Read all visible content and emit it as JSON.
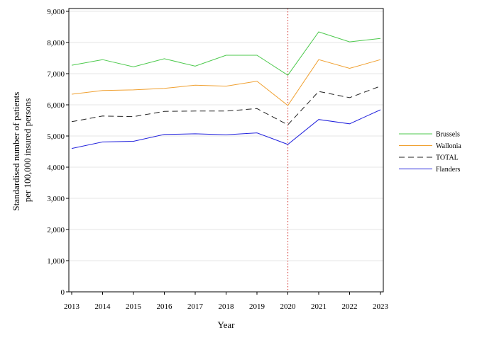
{
  "chart_data": {
    "type": "line",
    "x": [
      2013,
      2014,
      2015,
      2016,
      2017,
      2018,
      2019,
      2020,
      2021,
      2022,
      2023
    ],
    "x_tick_labels": [
      "2013",
      "2014",
      "2015",
      "2016",
      "2017",
      "2018",
      "2019",
      "2020",
      "2021",
      "2022",
      "2023"
    ],
    "xlabel": "Year",
    "ylabel": "Standardised number of patients per 100,000 insured persons",
    "ylabel_lines": [
      "Standardised number of patients",
      "per 100,000 insured persons"
    ],
    "ylim": [
      0,
      9000
    ],
    "y_ticks": [
      0,
      1000,
      2000,
      3000,
      4000,
      5000,
      6000,
      7000,
      8000,
      9000
    ],
    "y_tick_labels": [
      "0",
      "1,000",
      "2,000",
      "3,000",
      "4,000",
      "5,000",
      "6,000",
      "7,000",
      "8,000",
      "9,000"
    ],
    "grid": "horizontal",
    "legend_position": "right",
    "reference_line": {
      "x": 2020,
      "style": "dotted",
      "color": "#d9534f"
    },
    "series": [
      {
        "name": "Brussels",
        "color": "#4cc94c",
        "dash": "solid",
        "values": [
          7270,
          7450,
          7220,
          7480,
          7240,
          7590,
          7590,
          6950,
          8340,
          8020,
          8130
        ]
      },
      {
        "name": "Wallonia",
        "color": "#f0a030",
        "dash": "solid",
        "values": [
          6340,
          6460,
          6480,
          6530,
          6630,
          6600,
          6760,
          5980,
          7450,
          7170,
          7450
        ]
      },
      {
        "name": "TOTAL",
        "color": "#222222",
        "dash": "dashed",
        "values": [
          5460,
          5640,
          5620,
          5790,
          5800,
          5800,
          5880,
          5360,
          6430,
          6230,
          6600
        ]
      },
      {
        "name": "Flanders",
        "color": "#2222dd",
        "dash": "solid",
        "values": [
          4600,
          4810,
          4830,
          5050,
          5070,
          5040,
          5100,
          4730,
          5530,
          5390,
          5840
        ]
      }
    ]
  }
}
